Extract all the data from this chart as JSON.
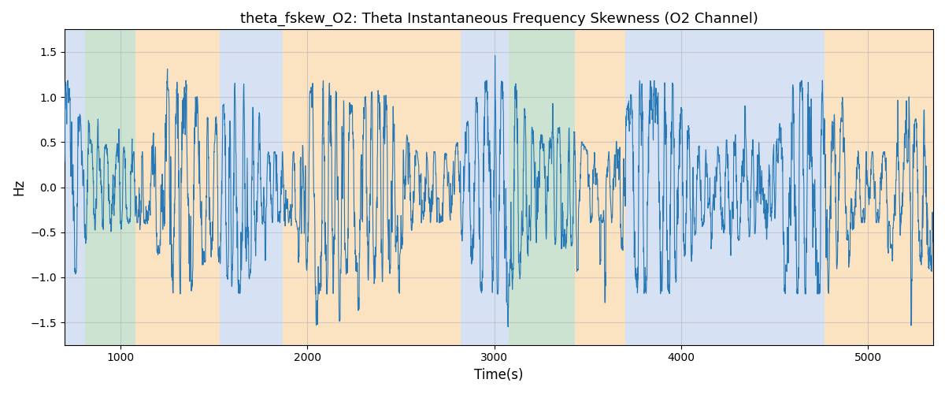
{
  "title": "theta_fskew_O2: Theta Instantaneous Frequency Skewness (O2 Channel)",
  "xlabel": "Time(s)",
  "ylabel": "Hz",
  "xlim": [
    700,
    5350
  ],
  "ylim": [
    -1.75,
    1.75
  ],
  "yticks": [
    -1.5,
    -1.0,
    -0.5,
    0.0,
    0.5,
    1.0,
    1.5
  ],
  "xticks": [
    1000,
    2000,
    3000,
    4000,
    5000
  ],
  "line_color": "#2878b5",
  "line_width": 0.8,
  "background_bands": [
    {
      "xstart": 700,
      "xend": 810,
      "color": "#aec6e8",
      "alpha": 0.5
    },
    {
      "xstart": 810,
      "xend": 1080,
      "color": "#98c9a3",
      "alpha": 0.5
    },
    {
      "xstart": 1080,
      "xend": 1530,
      "color": "#f9c784",
      "alpha": 0.5
    },
    {
      "xstart": 1530,
      "xend": 1870,
      "color": "#aec6e8",
      "alpha": 0.5
    },
    {
      "xstart": 1870,
      "xend": 2820,
      "color": "#f9c784",
      "alpha": 0.5
    },
    {
      "xstart": 2820,
      "xend": 2960,
      "color": "#aec6e8",
      "alpha": 0.5
    },
    {
      "xstart": 2960,
      "xend": 3080,
      "color": "#aec6e8",
      "alpha": 0.5
    },
    {
      "xstart": 3080,
      "xend": 3430,
      "color": "#98c9a3",
      "alpha": 0.5
    },
    {
      "xstart": 3430,
      "xend": 3700,
      "color": "#f9c784",
      "alpha": 0.5
    },
    {
      "xstart": 3700,
      "xend": 4770,
      "color": "#aec6e8",
      "alpha": 0.5
    },
    {
      "xstart": 4770,
      "xend": 5350,
      "color": "#f9c784",
      "alpha": 0.5
    }
  ],
  "grid_color": "#b0b0b0",
  "grid_alpha": 0.5,
  "grid_linewidth": 0.8,
  "figsize": [
    12.0,
    5.0
  ],
  "dpi": 100,
  "seed": 42,
  "n_points": 4650,
  "t_start": 700,
  "t_end": 5350
}
